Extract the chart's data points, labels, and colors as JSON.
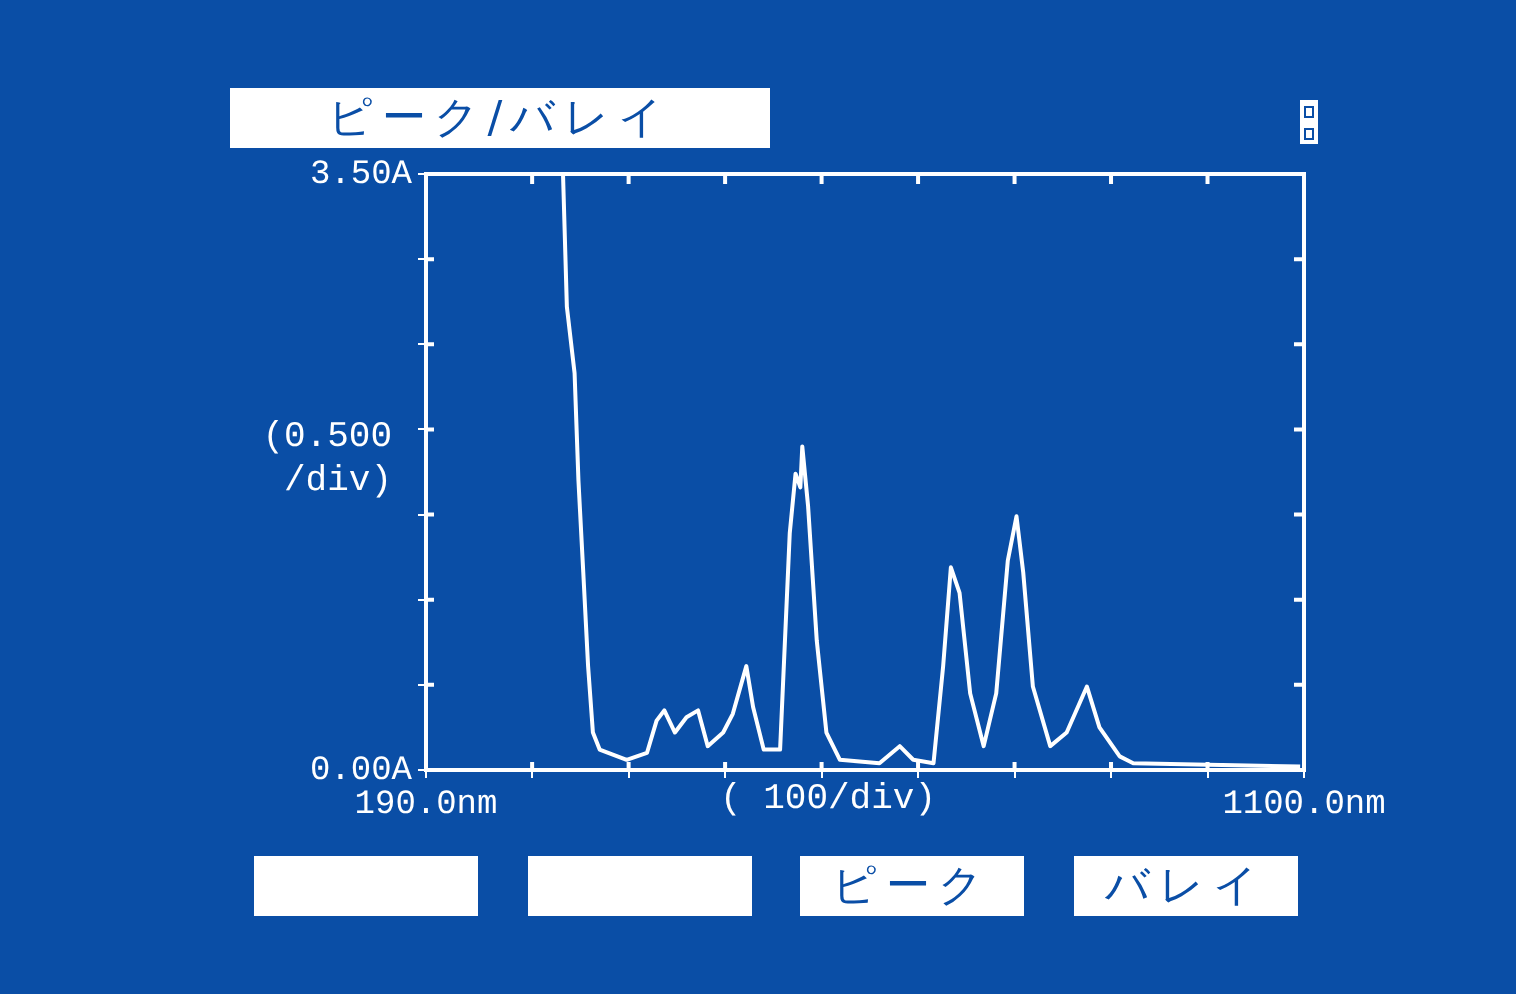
{
  "chart_data": {
    "type": "line",
    "title": "ピーク/バレイ",
    "xlabel": "( 100/div)",
    "ylabel": "(0.500\n/div)",
    "x": [
      332,
      336,
      344,
      348,
      353,
      358,
      363,
      370,
      398,
      419,
      429,
      437,
      448,
      460,
      472,
      482,
      498,
      508,
      522,
      529,
      540,
      557,
      567,
      573,
      578,
      580,
      586,
      595,
      605,
      619,
      660,
      681,
      695,
      716,
      726,
      734,
      743,
      754,
      768,
      781,
      793,
      802,
      809,
      819,
      837,
      854,
      875,
      888,
      909,
      923,
      1096
    ],
    "series": [
      {
        "color": "#ffffff",
        "values": [
          3.5,
          2.72,
          2.33,
          1.7,
          1.16,
          0.61,
          0.22,
          0.12,
          0.06,
          0.1,
          0.29,
          0.35,
          0.22,
          0.31,
          0.35,
          0.14,
          0.22,
          0.33,
          0.61,
          0.37,
          0.12,
          0.12,
          1.39,
          1.74,
          1.66,
          1.9,
          1.55,
          0.76,
          0.22,
          0.06,
          0.04,
          0.14,
          0.06,
          0.04,
          0.61,
          1.19,
          1.04,
          0.45,
          0.14,
          0.45,
          1.23,
          1.49,
          1.16,
          0.49,
          0.14,
          0.22,
          0.49,
          0.25,
          0.08,
          0.04,
          0.02
        ]
      }
    ],
    "xlim": [
      190,
      1100
    ],
    "xticks": [
      {
        "value": 190,
        "label": "190.0nm"
      },
      {
        "value": 300,
        "label": null
      },
      {
        "value": 400,
        "label": null
      },
      {
        "value": 500,
        "label": null
      },
      {
        "value": 600,
        "label": null
      },
      {
        "value": 700,
        "label": null
      },
      {
        "value": 800,
        "label": null
      },
      {
        "value": 900,
        "label": null
      },
      {
        "value": 1000,
        "label": null
      },
      {
        "value": 1100,
        "label": "1100.0nm"
      }
    ],
    "ylim": [
      0,
      3.5
    ],
    "yticks": [
      {
        "value": 0,
        "label": "0.00A"
      },
      {
        "value": 0.5,
        "label": null
      },
      {
        "value": 1,
        "label": null
      },
      {
        "value": 1.5,
        "label": null
      },
      {
        "value": 2,
        "label": null
      },
      {
        "value": 2.5,
        "label": null
      },
      {
        "value": 3,
        "label": null
      },
      {
        "value": 3.5,
        "label": "3.50A"
      }
    ],
    "annotations": [
      "ピーク",
      "バレイ"
    ],
    "grid": false,
    "legend": false,
    "marker": "none",
    "line_style": "solid"
  }
}
